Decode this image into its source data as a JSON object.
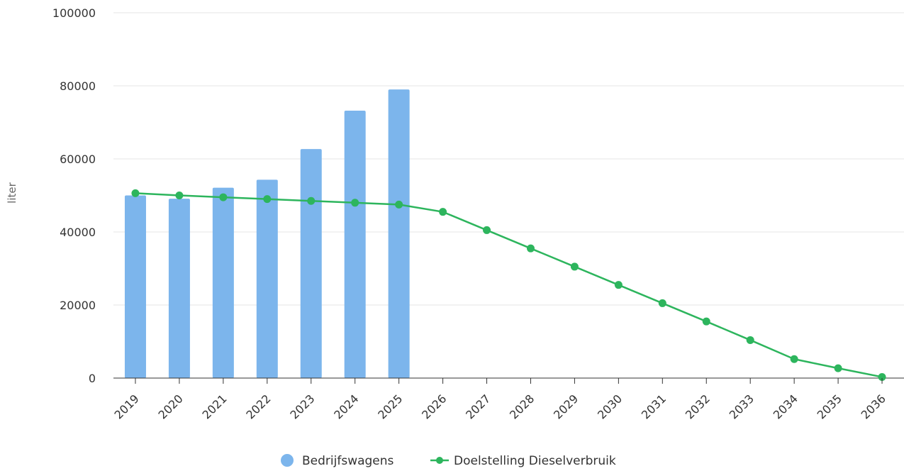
{
  "chart_data": {
    "type": "bar",
    "ylabel": "liter",
    "ylim": [
      0,
      100000
    ],
    "y_ticks": [
      "0",
      "20000",
      "40000",
      "60000",
      "80000",
      "100000"
    ],
    "categories": [
      "2019",
      "2020",
      "2021",
      "2022",
      "2023",
      "2024",
      "2025",
      "2026",
      "2027",
      "2028",
      "2029",
      "2030",
      "2031",
      "2032",
      "2033",
      "2034",
      "2035",
      "2036"
    ],
    "series": [
      {
        "name": "Bedrijfswagens",
        "type": "bar",
        "color": "#7cb5ec",
        "values": [
          50000,
          49100,
          52100,
          54300,
          62700,
          73200,
          79000,
          null,
          null,
          null,
          null,
          null,
          null,
          null,
          null,
          null,
          null,
          null
        ]
      },
      {
        "name": "Doelstelling Dieselverbruik",
        "type": "line",
        "color": "#2db55d",
        "values": [
          50600,
          50000,
          49500,
          49000,
          48500,
          48000,
          47500,
          45500,
          40500,
          35500,
          30500,
          25500,
          20500,
          15500,
          10400,
          5200,
          2700,
          300
        ]
      }
    ],
    "legend_position": "bottom-center",
    "grid": true
  }
}
